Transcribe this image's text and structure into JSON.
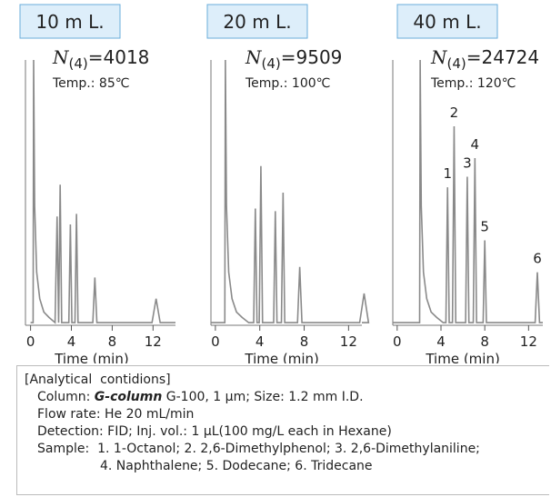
{
  "chart_data": [
    {
      "type": "line",
      "title": "10 m L.",
      "plate": {
        "symbol": "N",
        "subscript": "(4)",
        "text": "=4018"
      },
      "temperature": "Temp.: 85℃",
      "xlabel": "Time (min)",
      "color": "#8a8a8a",
      "x": [
        0,
        0.25,
        0.3,
        0.4,
        0.6,
        0.9,
        1.3,
        1.8,
        2.4,
        2.6,
        2.75,
        2.9,
        3.05,
        3.75,
        3.9,
        4.05,
        4.35,
        4.5,
        4.65,
        6.1,
        6.3,
        6.5,
        11.9,
        12.3,
        12.7,
        14.2
      ],
      "values": [
        1,
        1,
        100,
        45,
        20,
        10,
        5,
        3,
        1,
        41,
        1,
        53,
        1,
        1,
        38,
        1,
        1,
        42,
        1,
        1,
        18,
        1,
        1,
        10,
        1,
        1
      ],
      "xlim": [
        -0.5,
        14.2
      ],
      "xticks": [
        0,
        4,
        8,
        12
      ],
      "ylim": [
        0,
        100
      ],
      "annotations": []
    },
    {
      "type": "line",
      "title": "20 m L.",
      "plate": {
        "symbol": "N",
        "subscript": "(4)",
        "text": "=9509"
      },
      "temperature": "Temp.: 100℃",
      "xlabel": "Time (min)",
      "color": "#8a8a8a",
      "x": [
        -0.4,
        0.85,
        0.9,
        1.0,
        1.2,
        1.5,
        1.9,
        2.4,
        3.0,
        3.45,
        3.6,
        3.75,
        3.95,
        4.1,
        4.25,
        5.25,
        5.4,
        5.55,
        5.95,
        6.1,
        6.25,
        7.4,
        7.6,
        7.8,
        13.0,
        13.4,
        13.8,
        13.2
      ],
      "values": [
        1,
        1,
        100,
        45,
        20,
        10,
        5,
        3,
        1,
        1,
        44,
        1,
        1,
        60,
        1,
        1,
        43,
        1,
        1,
        50,
        1,
        1,
        22,
        1,
        1,
        12,
        1,
        1
      ],
      "xlim": [
        -0.4,
        13.2
      ],
      "xticks": [
        0,
        4,
        8,
        12
      ],
      "ylim": [
        0,
        100
      ],
      "annotations": []
    },
    {
      "type": "line",
      "title": "40 m L.",
      "plate": {
        "symbol": "N",
        "subscript": "(4)",
        "text": "=24724"
      },
      "temperature": "Temp.: 120℃",
      "xlabel": "Time (min)",
      "color": "#8a8a8a",
      "x": [
        -0.4,
        2.05,
        2.1,
        2.2,
        2.4,
        2.7,
        3.1,
        3.6,
        4.2,
        4.45,
        4.6,
        4.75,
        5.05,
        5.2,
        5.35,
        6.25,
        6.4,
        6.55,
        6.95,
        7.1,
        7.25,
        7.85,
        8.0,
        8.15,
        12.6,
        12.8,
        13.0,
        13.3
      ],
      "values": [
        1,
        1,
        100,
        45,
        20,
        10,
        5,
        3,
        1,
        1,
        52,
        1,
        1,
        75,
        1,
        1,
        56,
        1,
        1,
        63,
        1,
        1,
        32,
        1,
        1,
        20,
        1,
        1
      ],
      "xlim": [
        -0.4,
        13.3
      ],
      "xticks": [
        0,
        4,
        8,
        12
      ],
      "ylim": [
        0,
        100
      ],
      "annotations": [
        {
          "text": "1",
          "x": 4.6,
          "y": 52
        },
        {
          "text": "2",
          "x": 5.2,
          "y": 75
        },
        {
          "text": "3",
          "x": 6.4,
          "y": 56
        },
        {
          "text": "4",
          "x": 7.1,
          "y": 63
        },
        {
          "text": "5",
          "x": 8.0,
          "y": 32
        },
        {
          "text": "6",
          "x": 12.8,
          "y": 20
        }
      ]
    }
  ],
  "conditions": {
    "title": "[Analytical  contidions]",
    "column_label": "Column: ",
    "column_name": "G-column",
    "column_rest": " G-100, 1 µm; Size: 1.2 mm I.D.",
    "lines": [
      "Flow rate: He 20 mL/min",
      "Detection: FID; Inj. vol.: 1 µL(100 mg/L each in Hexane)",
      "Sample:  1. 1-Octanol; 2. 2,6-Dimethylphenol; 3. 2,6-Dimethylaniline;"
    ],
    "continuation": "4. Naphthalene; 5. Dodecane; 6. Tridecane"
  }
}
